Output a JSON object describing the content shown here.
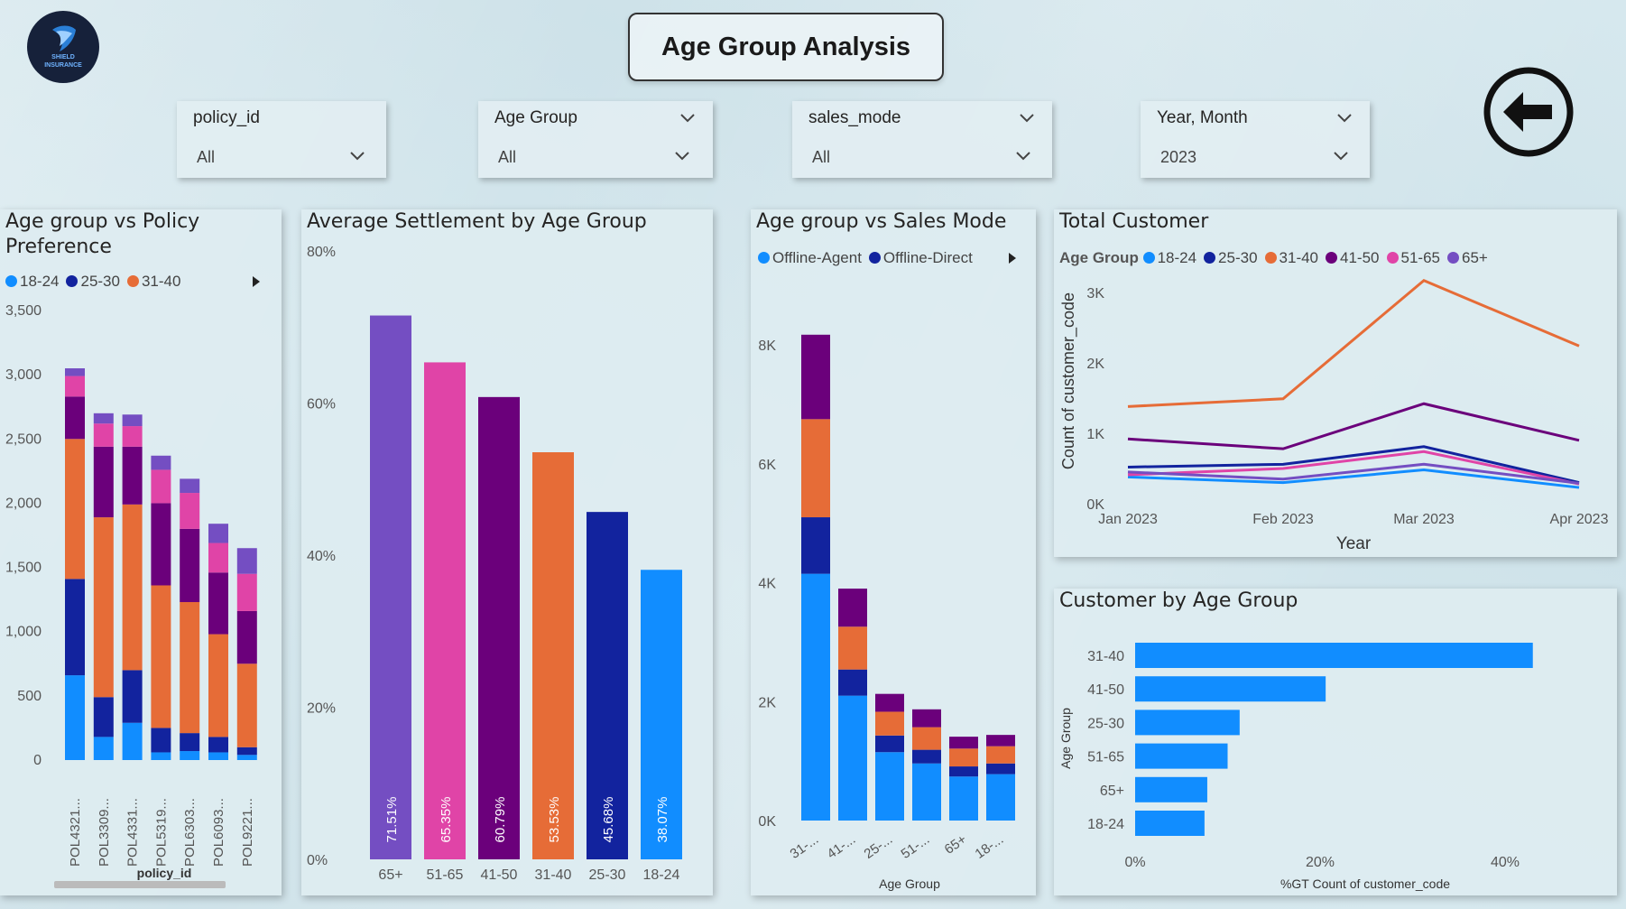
{
  "header": {
    "title": "Age Group Analysis",
    "logo_line1": "SHIELD",
    "logo_line2": "INSURANCE"
  },
  "slicers": [
    {
      "title": "policy_id",
      "value": "All"
    },
    {
      "title": "Age Group",
      "value": "All"
    },
    {
      "title": "sales_mode",
      "value": "All"
    },
    {
      "title": "Year, Month",
      "value": "2023"
    }
  ],
  "colors": {
    "18-24": "#118dff",
    "25-30": "#12239e",
    "31-40": "#e66c37",
    "41-50": "#6b007b",
    "51-65": "#e044a7",
    "65+": "#744ec2"
  },
  "panels": {
    "policy": {
      "title_line1": "Age group vs Policy",
      "title_line2": "Preference",
      "legend": [
        "18-24",
        "25-30",
        "31-40"
      ],
      "xlabel": "policy_id",
      "chart_data": {
        "type": "bar",
        "stacked": true,
        "categories": [
          "POL4321...",
          "POL3309...",
          "POL4331...",
          "POL5319...",
          "POL6303...",
          "POL6093...",
          "POL9221..."
        ],
        "series": [
          {
            "name": "18-24",
            "values": [
              660,
              180,
              290,
              60,
              70,
              60,
              40
            ]
          },
          {
            "name": "25-30",
            "values": [
              750,
              310,
              410,
              190,
              140,
              120,
              60
            ]
          },
          {
            "name": "31-40",
            "values": [
              1090,
              1400,
              1290,
              1110,
              1020,
              800,
              650
            ]
          },
          {
            "name": "41-50",
            "values": [
              330,
              550,
              450,
              640,
              570,
              480,
              410
            ]
          },
          {
            "name": "51-65",
            "values": [
              160,
              180,
              160,
              260,
              280,
              230,
              290
            ]
          },
          {
            "name": "65+",
            "values": [
              60,
              80,
              90,
              110,
              110,
              150,
              200
            ]
          }
        ],
        "yticks": [
          "0",
          "500",
          "1,000",
          "1,500",
          "2,000",
          "2,500",
          "3,000",
          "3,500"
        ],
        "ylim": [
          0,
          3500
        ]
      }
    },
    "settlement": {
      "title": "Average Settlement by Age Group",
      "chart_data": {
        "type": "bar",
        "categories": [
          "65+",
          "51-65",
          "41-50",
          "31-40",
          "25-30",
          "18-24"
        ],
        "values": [
          71.51,
          65.35,
          60.79,
          53.53,
          45.68,
          38.07
        ],
        "labels": [
          "71.51%",
          "65.35%",
          "60.79%",
          "53.53%",
          "45.68%",
          "38.07%"
        ],
        "yticks": [
          "0%",
          "20%",
          "40%",
          "60%",
          "80%"
        ],
        "ylim": [
          0,
          80
        ]
      }
    },
    "sales": {
      "title": "Age group vs Sales Mode",
      "legend": [
        "Offline-Agent",
        "Offline-Direct"
      ],
      "legend_colors": [
        "#118dff",
        "#12239e"
      ],
      "xlabel": "Age Group",
      "chart_data": {
        "type": "bar",
        "stacked": true,
        "categories": [
          "31-...",
          "41-...",
          "25-...",
          "51-...",
          "65+",
          "18-..."
        ],
        "series": [
          {
            "name": "Offline-Agent",
            "values": [
              4150,
              2100,
              1150,
              960,
              740,
              780
            ]
          },
          {
            "name": "Offline-Direct",
            "values": [
              950,
              440,
              280,
              230,
              170,
              180
            ]
          },
          {
            "values": [
              1650,
              720,
              400,
              380,
              300,
              290
            ]
          },
          {
            "values": [
              1420,
              640,
              300,
              300,
              200,
              190
            ]
          }
        ],
        "yticks": [
          "0K",
          "2K",
          "4K",
          "6K",
          "8K"
        ],
        "ylim": [
          0,
          8000
        ]
      }
    },
    "total": {
      "title": "Total Customer",
      "legend_label": "Age Group",
      "legend": [
        "18-24",
        "25-30",
        "31-40",
        "41-50",
        "51-65",
        "65+"
      ],
      "xlabel": "Year",
      "ylabel": "Count of customer_code",
      "chart_data": {
        "type": "line",
        "x": [
          "Jan 2023",
          "Feb 2023",
          "Mar 2023",
          "Apr 2023"
        ],
        "series": [
          {
            "name": "18-24",
            "values": [
              380,
              300,
              480,
              230
            ]
          },
          {
            "name": "25-30",
            "values": [
              520,
              560,
              810,
              300
            ]
          },
          {
            "name": "31-40",
            "values": [
              1380,
              1490,
              3170,
              2240
            ]
          },
          {
            "name": "41-50",
            "values": [
              920,
              780,
              1420,
              900
            ]
          },
          {
            "name": "51-65",
            "values": [
              410,
              500,
              740,
              280
            ]
          },
          {
            "name": "65+",
            "values": [
              450,
              350,
              560,
              290
            ]
          }
        ],
        "yticks": [
          "0K",
          "1K",
          "2K",
          "3K"
        ],
        "ylim": [
          0,
          3500
        ]
      }
    },
    "customer": {
      "title": "Customer by Age Group",
      "xlabel": "%GT Count of customer_code",
      "ylabel": "Age Group",
      "chart_data": {
        "type": "bar",
        "orientation": "horizontal",
        "categories": [
          "31-40",
          "41-50",
          "25-30",
          "51-65",
          "65+",
          "18-24"
        ],
        "values": [
          43,
          20.6,
          11.3,
          10,
          7.8,
          7.5
        ],
        "xticks": [
          "0%",
          "20%",
          "40%"
        ],
        "xlim": [
          0,
          48
        ]
      }
    }
  }
}
